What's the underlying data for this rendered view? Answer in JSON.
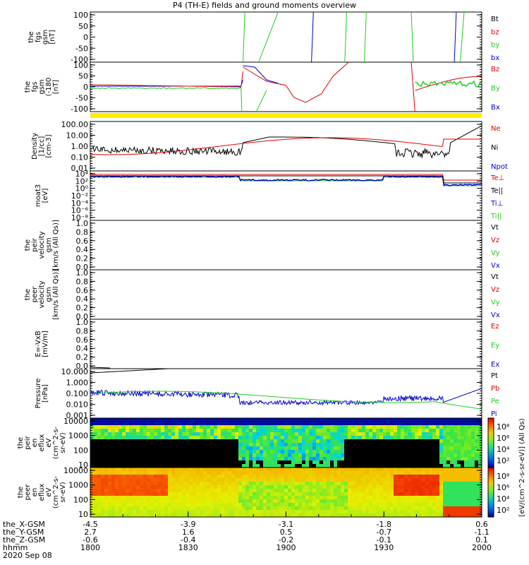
{
  "title": "P4 (TH-E) fields and ground moments overview",
  "colors": {
    "black": "#000000",
    "red": "#dd0000",
    "green": "#22cc22",
    "blue": "#0000cc",
    "yellow": "#ffee00"
  },
  "chart_data": [
    {
      "id": "fgs",
      "type": "line",
      "ylabel_lines": [
        "the",
        "fgs",
        "gsm",
        "[nT]"
      ],
      "ylim": [
        -100,
        100
      ],
      "yticks": [
        "100",
        "50",
        "0",
        "-50",
        "-100"
      ],
      "legend": [
        {
          "text": "Bt",
          "color": "black"
        },
        {
          "text": "bz",
          "color": "red"
        },
        {
          "text": "by",
          "color": "green"
        },
        {
          "text": "bx",
          "color": "blue"
        }
      ]
    },
    {
      "id": "fgs_long",
      "type": "line",
      "ylabel_lines": [
        "the",
        "fgs",
        "gsm",
        "(-180",
        "[nT]"
      ],
      "ylim": [
        -125,
        125
      ],
      "yticks": [
        "100",
        "50",
        "0",
        "-50",
        "-100"
      ],
      "legend": [
        {
          "text": "Bz",
          "color": "red"
        },
        {
          "text": "By",
          "color": "green"
        },
        {
          "text": "Bx",
          "color": "blue"
        }
      ]
    },
    {
      "id": "density",
      "type": "line",
      "scale": "log",
      "ylabel_lines": [
        "Density",
        "[1/cc]",
        "[cm-3]"
      ],
      "yticks": [
        "100.00",
        "10.00",
        "1.00",
        "0.10",
        "0.01"
      ],
      "legend": [
        {
          "text": "Ne",
          "color": "red"
        },
        {
          "text": "Ni",
          "color": "black"
        },
        {
          "text": "Npot",
          "color": "blue"
        }
      ]
    },
    {
      "id": "temp",
      "type": "line",
      "scale": "log",
      "ylabel_lines": [
        "moat3",
        "[eV]"
      ],
      "yticks": [
        "10⁴",
        "10²",
        "10⁰",
        "10⁻²",
        "10⁻⁴",
        "10⁻⁶",
        "10⁻⁸"
      ],
      "legend": [
        {
          "text": "Te⊥",
          "color": "red"
        },
        {
          "text": "Te||",
          "color": "black"
        },
        {
          "text": "Ti⊥",
          "color": "blue"
        },
        {
          "text": "Ti||",
          "color": "green"
        }
      ]
    },
    {
      "id": "peir_vel",
      "type": "line",
      "ylabel_lines": [
        "the",
        "peir",
        "velocity",
        "gsm",
        "[km/s (All Qs)]"
      ],
      "yticks": [
        "1.0",
        "0.8",
        "0.6",
        "0.4",
        "0.2",
        "0.0"
      ],
      "legend": [
        {
          "text": "Vt",
          "color": "black"
        },
        {
          "text": "Vz",
          "color": "red"
        },
        {
          "text": "Vy",
          "color": "green"
        },
        {
          "text": "Vx",
          "color": "blue"
        }
      ]
    },
    {
      "id": "peer_vel",
      "type": "line",
      "ylabel_lines": [
        "the",
        "peer",
        "velocity",
        "gsm",
        "[km/s (All Qs)]"
      ],
      "yticks": [
        "1.0",
        "0.8",
        "0.6",
        "0.4",
        "0.2",
        "0.0"
      ],
      "legend": [
        {
          "text": "Vt",
          "color": "black"
        },
        {
          "text": "Vz",
          "color": "red"
        },
        {
          "text": "Vy",
          "color": "green"
        },
        {
          "text": "Vx",
          "color": "blue"
        }
      ]
    },
    {
      "id": "efield",
      "type": "line",
      "ylabel_lines": [
        "E=-VxB",
        "[mV/m]"
      ],
      "yticks": [
        "1.0",
        "0.8",
        "0.6",
        "0.4",
        "0.2",
        "0.0"
      ],
      "legend": [
        {
          "text": "Ez",
          "color": "red"
        },
        {
          "text": "Ey",
          "color": "green"
        },
        {
          "text": "Ex",
          "color": "blue"
        }
      ]
    },
    {
      "id": "pressure",
      "type": "line",
      "scale": "log",
      "ylabel_lines": [
        "Pressure",
        "[nPa]"
      ],
      "yticks": [
        "10.000",
        "1.000",
        "0.100",
        "0.010",
        "0.001"
      ],
      "legend": [
        {
          "text": "Pt",
          "color": "black"
        },
        {
          "text": "Pb",
          "color": "red"
        },
        {
          "text": "Pe",
          "color": "green"
        },
        {
          "text": "Pi",
          "color": "blue"
        }
      ]
    },
    {
      "id": "peir_eflux",
      "type": "heatmap",
      "ylabel_lines": [
        "the",
        "peir",
        "en",
        "eflux",
        "eV",
        "(cm^2-s-",
        "sr-eV)"
      ],
      "yticks": [
        "10000",
        "1000",
        "100",
        "10"
      ]
    },
    {
      "id": "peer_eflux",
      "type": "heatmap",
      "ylabel_lines": [
        "the",
        "peer",
        "en",
        "eflux",
        "eV",
        "(cm^2-s-",
        "sr-eV)"
      ],
      "yticks": [
        "10000",
        "1000",
        "100",
        "10"
      ]
    }
  ],
  "colorbar": {
    "ticks": [
      "10⁸",
      "10⁶",
      "10⁴",
      "10²"
    ],
    "label": "[eV/(cm^2-s-sr-eV)] (All Qs)"
  },
  "x_axis": {
    "row_labels": [
      "the_X-GSM",
      "the_Y-GSM",
      "the_Z-GSM",
      "hhmm",
      "2020 Sep 08"
    ],
    "ticks": [
      {
        "x_gsm": "-4.5",
        "y_gsm": "2.7",
        "z_gsm": "-0.6",
        "hhmm": "1800"
      },
      {
        "x_gsm": "-3.9",
        "y_gsm": "1.6",
        "z_gsm": "-0.4",
        "hhmm": "1830"
      },
      {
        "x_gsm": "-3.1",
        "y_gsm": "0.5",
        "z_gsm": "-0.2",
        "hhmm": "1900"
      },
      {
        "x_gsm": "-1.8",
        "y_gsm": "-0.7",
        "z_gsm": "-0.1",
        "hhmm": "1930"
      },
      {
        "x_gsm": "0.6",
        "y_gsm": "-1.1",
        "z_gsm": "0.1",
        "hhmm": "2000"
      }
    ]
  }
}
